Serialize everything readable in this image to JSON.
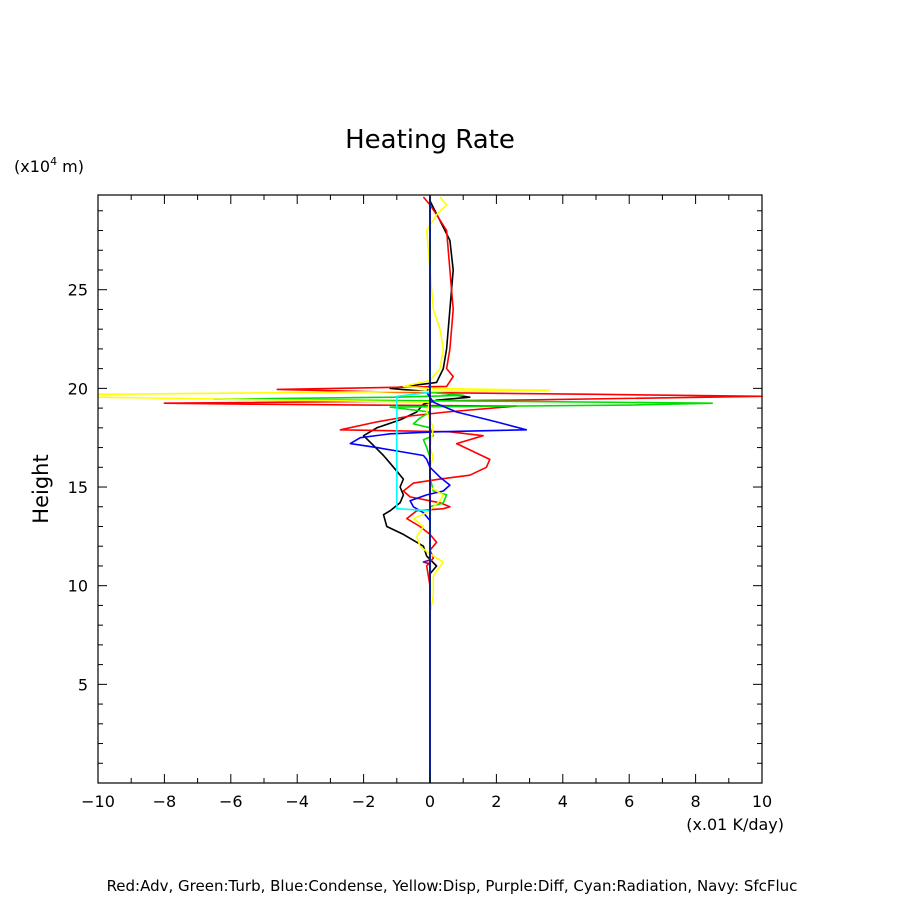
{
  "chart_data": {
    "type": "line",
    "title": "Heating Rate",
    "xlabel": "(x.01 K/day)",
    "ylabel": "Height",
    "y_unit": "(x10",
    "y_unit_exp": "4",
    "y_unit_tail": " m)",
    "xlim": [
      -10,
      10
    ],
    "ylim": [
      0,
      29.8
    ],
    "x_ticks": [
      -10,
      -8,
      -6,
      -4,
      -2,
      0,
      2,
      4,
      6,
      8,
      10
    ],
    "x_tick_labels": [
      "−10",
      "−8",
      "−6",
      "−4",
      "−2",
      "0",
      "2",
      "4",
      "6",
      "8",
      "10"
    ],
    "y_ticks": [
      10,
      15,
      20,
      25,
      5
    ],
    "y_tick_labels": [
      "10",
      "15",
      "20",
      "25",
      "5"
    ],
    "grid": false,
    "caption": "Red:Adv, Green:Turb, Blue:Condense, Yellow:Disp, Purple:Diff, Cyan:Radiation, Navy: SfcFluc",
    "series": [
      {
        "color": "#000000",
        "points": [
          [
            0,
            0
          ],
          [
            0,
            8
          ],
          [
            0,
            10.6
          ],
          [
            0.2,
            11.0
          ],
          [
            -0.1,
            11.5
          ],
          [
            -0.2,
            12
          ],
          [
            -0.5,
            12.3
          ],
          [
            -0.8,
            12.6
          ],
          [
            -1.3,
            13
          ],
          [
            -1.4,
            13.6
          ],
          [
            -1.2,
            13.8
          ],
          [
            -0.9,
            14.2
          ],
          [
            -0.8,
            14.6
          ],
          [
            -0.9,
            15
          ],
          [
            -0.8,
            15.4
          ],
          [
            -1.0,
            15.8
          ],
          [
            -1.2,
            16.2
          ],
          [
            -1.4,
            16.6
          ],
          [
            -1.7,
            17.1
          ],
          [
            -2.0,
            17.6
          ],
          [
            -1.6,
            18.0
          ],
          [
            -0.9,
            18.4
          ],
          [
            -0.4,
            18.8
          ],
          [
            -0.2,
            19.2
          ],
          [
            0.2,
            19.4
          ],
          [
            1.2,
            19.55
          ],
          [
            0.2,
            19.8
          ],
          [
            -1.2,
            20.0
          ],
          [
            0.2,
            20.3
          ],
          [
            0.4,
            21
          ],
          [
            0.5,
            22
          ],
          [
            0.6,
            24
          ],
          [
            0.7,
            26
          ],
          [
            0.6,
            27.5
          ],
          [
            0.3,
            28.5
          ],
          [
            0,
            29.5
          ]
        ]
      },
      {
        "color": "#ff0000",
        "points": [
          [
            0,
            0
          ],
          [
            0,
            10
          ],
          [
            -0.1,
            11
          ],
          [
            0.1,
            11.4
          ],
          [
            0,
            11.8
          ],
          [
            0.2,
            12.2
          ],
          [
            0,
            12.6
          ],
          [
            -0.3,
            13.0
          ],
          [
            -0.7,
            13.4
          ],
          [
            -0.4,
            13.8
          ],
          [
            0.4,
            13.9
          ],
          [
            0.6,
            14.0
          ],
          [
            0.3,
            14.2
          ],
          [
            -0.6,
            14.5
          ],
          [
            -0.8,
            14.8
          ],
          [
            -0.5,
            15.2
          ],
          [
            0.3,
            15.4
          ],
          [
            1.2,
            15.6
          ],
          [
            1.7,
            16
          ],
          [
            1.8,
            16.4
          ],
          [
            1.3,
            16.8
          ],
          [
            0.8,
            17.2
          ],
          [
            1.6,
            17.6
          ],
          [
            0.6,
            17.8
          ],
          [
            -2.7,
            17.9
          ],
          [
            -1.6,
            18.3
          ],
          [
            -0.6,
            18.6
          ],
          [
            0.5,
            18.8
          ],
          [
            2.6,
            19.1
          ],
          [
            -5.4,
            19.2
          ],
          [
            -8,
            19.25
          ],
          [
            2.4,
            19.4
          ],
          [
            10,
            19.6
          ],
          [
            5,
            19.7
          ],
          [
            -1.0,
            19.8
          ],
          [
            -4.6,
            19.95
          ],
          [
            0.5,
            20.1
          ],
          [
            0.7,
            20.6
          ],
          [
            0.5,
            21
          ],
          [
            0.6,
            22
          ],
          [
            0.7,
            24
          ],
          [
            0.6,
            26
          ],
          [
            0.5,
            28
          ],
          [
            0.2,
            28.8
          ],
          [
            0,
            29.3
          ],
          [
            -0.2,
            29.7
          ]
        ]
      },
      {
        "color": "#00dd00",
        "points": [
          [
            0,
            0
          ],
          [
            0,
            14
          ],
          [
            0.4,
            14.2
          ],
          [
            0.5,
            14.6
          ],
          [
            0.1,
            14.8
          ],
          [
            0,
            15.5
          ],
          [
            0,
            16.5
          ],
          [
            -0.1,
            17
          ],
          [
            -0.2,
            17.4
          ],
          [
            0.1,
            17.6
          ],
          [
            0,
            18
          ],
          [
            -0.5,
            18.2
          ],
          [
            -0.3,
            18.5
          ],
          [
            0,
            18.8
          ],
          [
            -1.2,
            19.05
          ],
          [
            6,
            19.15
          ],
          [
            8.5,
            19.25
          ],
          [
            2,
            19.35
          ],
          [
            -6.5,
            19.45
          ],
          [
            -1,
            19.55
          ],
          [
            1.0,
            19.65
          ],
          [
            0,
            19.8
          ],
          [
            0,
            29.7
          ]
        ]
      },
      {
        "color": "#0000ff",
        "points": [
          [
            0,
            0
          ],
          [
            0,
            13.3
          ],
          [
            -0.2,
            13.7
          ],
          [
            -0.5,
            14.0
          ],
          [
            -0.6,
            14.3
          ],
          [
            -0.1,
            14.6
          ],
          [
            0.4,
            14.8
          ],
          [
            0.6,
            15.1
          ],
          [
            0.3,
            15.5
          ],
          [
            0,
            16
          ],
          [
            -0.1,
            16.4
          ],
          [
            -0.2,
            16.6
          ],
          [
            -0.9,
            16.8
          ],
          [
            -1.6,
            17.0
          ],
          [
            -2.4,
            17.2
          ],
          [
            -2.1,
            17.5
          ],
          [
            -1.2,
            17.7
          ],
          [
            0.2,
            17.8
          ],
          [
            2.9,
            17.9
          ],
          [
            2.0,
            18.3
          ],
          [
            0.8,
            18.8
          ],
          [
            0.1,
            19.3
          ],
          [
            -0.1,
            19.8
          ],
          [
            0,
            20.2
          ],
          [
            0,
            29.7
          ]
        ]
      },
      {
        "color": "#ffff00",
        "points": [
          [
            0,
            8.6
          ],
          [
            0.1,
            9.5
          ],
          [
            0.1,
            10.5
          ],
          [
            0.4,
            11.2
          ],
          [
            0,
            11.6
          ],
          [
            -0.3,
            12
          ],
          [
            -0.4,
            12.5
          ],
          [
            -0.2,
            13
          ],
          [
            -0.5,
            13.4
          ],
          [
            -0.1,
            13.7
          ],
          [
            0.1,
            14
          ],
          [
            0.3,
            14.3
          ],
          [
            0.4,
            14.6
          ],
          [
            0,
            15
          ],
          [
            0,
            16
          ],
          [
            0.1,
            16.5
          ],
          [
            0,
            17
          ],
          [
            0.1,
            18
          ],
          [
            -0.1,
            18.8
          ],
          [
            0,
            19.3
          ],
          [
            -10,
            19.55
          ],
          [
            -10,
            19.7
          ],
          [
            3.6,
            19.9
          ],
          [
            0,
            20.0
          ],
          [
            -0.8,
            20.1
          ],
          [
            0,
            20.4
          ],
          [
            0.3,
            21
          ],
          [
            0.4,
            22
          ],
          [
            0.3,
            23
          ],
          [
            0.1,
            24
          ],
          [
            0,
            26
          ],
          [
            -0.1,
            28
          ],
          [
            0.2,
            28.8
          ],
          [
            0.5,
            29.3
          ],
          [
            0.3,
            29.7
          ]
        ]
      },
      {
        "color": "#800080",
        "points": [
          [
            0,
            0
          ],
          [
            0,
            11.1
          ],
          [
            -0.2,
            11.2
          ],
          [
            0,
            11.3
          ],
          [
            0,
            29.7
          ]
        ]
      },
      {
        "color": "#00ffff",
        "points": [
          [
            0,
            0
          ],
          [
            0,
            13.8
          ],
          [
            -1.0,
            13.9
          ],
          [
            -1.0,
            15
          ],
          [
            -1.0,
            16
          ],
          [
            -1.0,
            17
          ],
          [
            -1.0,
            18
          ],
          [
            -1.0,
            19
          ],
          [
            -1.0,
            19.6
          ],
          [
            0,
            19.8
          ],
          [
            0,
            29.7
          ]
        ]
      },
      {
        "color": "#000080",
        "points": [
          [
            0,
            0
          ],
          [
            0,
            29.8
          ]
        ]
      }
    ]
  }
}
